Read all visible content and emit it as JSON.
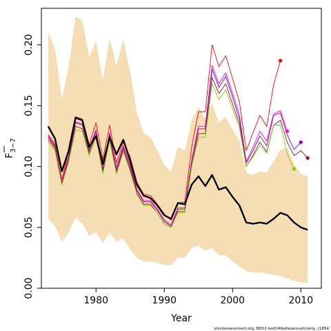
{
  "chart_data": {
    "type": "line",
    "xlabel": "Year",
    "ylabel_main": "F",
    "ylabel_sub": "3−7",
    "footer": "stockassessment.org, BH12-test04lbefasacousticonly, r1854",
    "xlim": [
      1972,
      2013
    ],
    "ylim": [
      0.0,
      0.23
    ],
    "x_ticks": [
      {
        "value": 1980,
        "label": "1980"
      },
      {
        "value": 1990,
        "label": "1990"
      },
      {
        "value": 2000,
        "label": "2000"
      },
      {
        "value": 2010,
        "label": "2010"
      }
    ],
    "y_ticks": [
      {
        "value": 0.0,
        "label": "0.00"
      },
      {
        "value": 0.05,
        "label": "0.05"
      },
      {
        "value": 0.1,
        "label": "0.10"
      },
      {
        "value": 0.15,
        "label": "0.15"
      },
      {
        "value": 0.2,
        "label": "0.20"
      }
    ],
    "band": {
      "color": "#f5deb3",
      "x": [
        1973,
        1974,
        1975,
        1976,
        1977,
        1978,
        1979,
        1980,
        1981,
        1982,
        1983,
        1984,
        1985,
        1986,
        1987,
        1988,
        1989,
        1990,
        1991,
        1992,
        1993,
        1994,
        1995,
        1996,
        1997,
        1998,
        1999,
        2000,
        2001,
        2002,
        2003,
        2004,
        2005,
        2006,
        2007,
        2008,
        2009,
        2010,
        2011
      ],
      "upper": [
        0.21,
        0.197,
        0.155,
        0.182,
        0.223,
        0.22,
        0.19,
        0.203,
        0.171,
        0.205,
        0.183,
        0.204,
        0.178,
        0.144,
        0.127,
        0.124,
        0.113,
        0.101,
        0.096,
        0.116,
        0.113,
        0.138,
        0.149,
        0.139,
        0.152,
        0.136,
        0.141,
        0.13,
        0.121,
        0.095,
        0.093,
        0.096,
        0.095,
        0.104,
        0.114,
        0.115,
        0.102,
        0.094,
        0.092
      ],
      "lower": [
        0.057,
        0.051,
        0.038,
        0.046,
        0.058,
        0.053,
        0.043,
        0.046,
        0.037,
        0.046,
        0.038,
        0.041,
        0.032,
        0.025,
        0.022,
        0.022,
        0.021,
        0.019,
        0.019,
        0.025,
        0.025,
        0.033,
        0.035,
        0.031,
        0.033,
        0.027,
        0.027,
        0.022,
        0.018,
        0.014,
        0.013,
        0.013,
        0.012,
        0.011,
        0.01,
        0.008,
        0.006,
        0.005,
        0.004
      ]
    },
    "main_series": {
      "color": "#000000",
      "x": [
        1973,
        1974,
        1975,
        1976,
        1977,
        1978,
        1979,
        1980,
        1981,
        1982,
        1983,
        1984,
        1985,
        1986,
        1987,
        1988,
        1989,
        1990,
        1991,
        1992,
        1993,
        1994,
        1995,
        1996,
        1997,
        1998,
        1999,
        2000,
        2001,
        2002,
        2003,
        2004,
        2005,
        2006,
        2007,
        2008,
        2009,
        2010,
        2011
      ],
      "y": [
        0.133,
        0.123,
        0.096,
        0.113,
        0.14,
        0.138,
        0.116,
        0.125,
        0.102,
        0.124,
        0.11,
        0.122,
        0.105,
        0.085,
        0.076,
        0.074,
        0.068,
        0.06,
        0.057,
        0.07,
        0.069,
        0.085,
        0.092,
        0.084,
        0.093,
        0.081,
        0.083,
        0.075,
        0.068,
        0.054,
        0.053,
        0.054,
        0.053,
        0.057,
        0.062,
        0.06,
        0.054,
        0.05,
        0.048
      ]
    },
    "retro_series": [
      {
        "color": "#ff0000",
        "x": [
          1973,
          1974,
          1975,
          1976,
          1977,
          1978,
          1979,
          1980,
          1981,
          1982,
          1983,
          1984,
          1985,
          1986,
          1987,
          1988,
          1989,
          1990,
          1991,
          1992,
          1993,
          1994,
          1995,
          1996,
          1997,
          1998,
          1999,
          2000,
          2001,
          2002,
          2003,
          2004,
          2005,
          2006,
          2007
        ],
        "y": [
          0.126,
          0.118,
          0.089,
          0.113,
          0.141,
          0.139,
          0.118,
          0.136,
          0.106,
          0.134,
          0.103,
          0.12,
          0.108,
          0.087,
          0.077,
          0.076,
          0.069,
          0.061,
          0.056,
          0.07,
          0.071,
          0.116,
          0.145,
          0.145,
          0.2,
          0.182,
          0.191,
          0.172,
          0.153,
          0.113,
          0.128,
          0.142,
          0.133,
          0.167,
          0.187
        ]
      },
      {
        "color": "#ff00cc",
        "x": [
          1973,
          1974,
          1975,
          1976,
          1977,
          1978,
          1979,
          1980,
          1981,
          1982,
          1983,
          1984,
          1985,
          1986,
          1987,
          1988,
          1989,
          1990,
          1991,
          1992,
          1993,
          1994,
          1995,
          1996,
          1997,
          1998,
          1999,
          2000,
          2001,
          2002,
          2003,
          2004,
          2005,
          2006,
          2007,
          2008
        ],
        "y": [
          0.125,
          0.117,
          0.087,
          0.109,
          0.137,
          0.135,
          0.115,
          0.13,
          0.098,
          0.128,
          0.099,
          0.117,
          0.102,
          0.081,
          0.072,
          0.072,
          0.065,
          0.056,
          0.052,
          0.066,
          0.066,
          0.105,
          0.133,
          0.133,
          0.183,
          0.168,
          0.177,
          0.16,
          0.142,
          0.104,
          0.116,
          0.129,
          0.121,
          0.143,
          0.146,
          0.129
        ]
      },
      {
        "color": "#8800aa",
        "x": [
          1973,
          1974,
          1975,
          1976,
          1977,
          1978,
          1979,
          1980,
          1981,
          1982,
          1983,
          1984,
          1985,
          1986,
          1987,
          1988,
          1989,
          1990,
          1991,
          1992,
          1993,
          1994,
          1995,
          1996,
          1997,
          1998,
          1999,
          2000,
          2001,
          2002,
          2003,
          2004,
          2005,
          2006,
          2007,
          2008,
          2009,
          2010
        ],
        "y": [
          0.124,
          0.116,
          0.086,
          0.108,
          0.136,
          0.134,
          0.113,
          0.129,
          0.097,
          0.126,
          0.097,
          0.116,
          0.1,
          0.08,
          0.071,
          0.071,
          0.064,
          0.055,
          0.051,
          0.065,
          0.065,
          0.104,
          0.131,
          0.131,
          0.18,
          0.165,
          0.174,
          0.157,
          0.139,
          0.103,
          0.113,
          0.125,
          0.117,
          0.142,
          0.144,
          0.126,
          0.114,
          0.12
        ]
      },
      {
        "color": "#7a1f1f",
        "x": [
          1973,
          1974,
          1975,
          1976,
          1977,
          1978,
          1979,
          1980,
          1981,
          1982,
          1983,
          1984,
          1985,
          1986,
          1987,
          1988,
          1989,
          1990,
          1991,
          1992,
          1993,
          1994,
          1995,
          1996,
          1997,
          1998,
          1999,
          2000,
          2001,
          2002,
          2003,
          2004,
          2005,
          2006,
          2007,
          2008,
          2009,
          2010,
          2011
        ],
        "y": [
          0.122,
          0.115,
          0.085,
          0.106,
          0.133,
          0.131,
          0.111,
          0.126,
          0.095,
          0.124,
          0.095,
          0.114,
          0.098,
          0.078,
          0.069,
          0.069,
          0.062,
          0.053,
          0.05,
          0.063,
          0.063,
          0.101,
          0.127,
          0.127,
          0.173,
          0.16,
          0.168,
          0.151,
          0.135,
          0.1,
          0.109,
          0.12,
          0.112,
          0.134,
          0.138,
          0.12,
          0.109,
          0.113,
          0.107
        ]
      },
      {
        "color": "#88cc00",
        "x": [
          1973,
          1974,
          1975,
          1976,
          1977,
          1978,
          1979,
          1980,
          1981,
          1982,
          1983,
          1984,
          1985,
          1986,
          1987,
          1988,
          1989,
          1990,
          1991,
          1992,
          1993,
          1994,
          1995,
          1996,
          1997,
          1998,
          1999,
          2000,
          2001,
          2002,
          2003,
          2004,
          2005,
          2006,
          2007,
          2008,
          2009
        ],
        "y": [
          0.12,
          0.113,
          0.085,
          0.104,
          0.13,
          0.129,
          0.109,
          0.124,
          0.094,
          0.121,
          0.094,
          0.112,
          0.096,
          0.077,
          0.068,
          0.068,
          0.062,
          0.053,
          0.05,
          0.062,
          0.062,
          0.1,
          0.124,
          0.124,
          0.168,
          0.155,
          0.163,
          0.147,
          0.132,
          0.1,
          0.108,
          0.117,
          0.111,
          0.134,
          0.134,
          0.111,
          0.098
        ]
      }
    ],
    "end_points": [
      {
        "x": 2007,
        "y": 0.187,
        "color": "#ff0000"
      },
      {
        "x": 2008,
        "y": 0.129,
        "color": "#ff00cc"
      },
      {
        "x": 2009,
        "y": 0.098,
        "color": "#88cc00"
      },
      {
        "x": 2010,
        "y": 0.12,
        "color": "#8800aa"
      },
      {
        "x": 2011,
        "y": 0.107,
        "color": "#aa0044"
      }
    ]
  }
}
